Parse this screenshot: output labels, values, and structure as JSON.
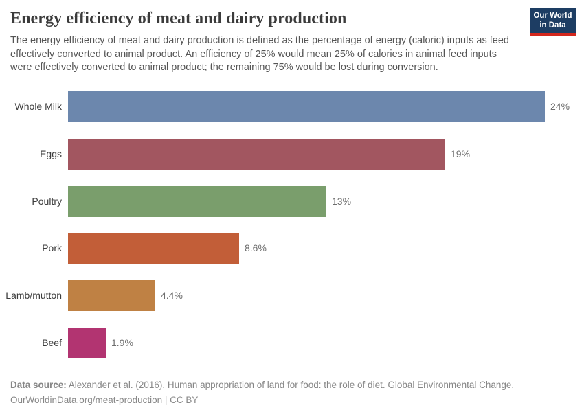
{
  "header": {
    "title": "Energy efficiency of meat and dairy production",
    "subtitle": "The energy efficiency of meat and dairy production is defined as the percentage of energy (caloric) inputs as feed effectively converted to animal product. An efficiency of 25% would mean 25% of calories in animal feed inputs were effectively converted to animal product; the remaining 75% would be lost during conversion.",
    "logo": {
      "line1": "Our World",
      "line2": "in Data",
      "background_color": "#1d3d63",
      "accent_color": "#d3271d"
    }
  },
  "chart_data": {
    "type": "bar",
    "orientation": "horizontal",
    "categories": [
      "Whole Milk",
      "Eggs",
      "Poultry",
      "Pork",
      "Lamb/mutton",
      "Beef"
    ],
    "values": [
      24,
      19,
      13,
      8.6,
      4.4,
      1.9
    ],
    "value_labels": [
      "24%",
      "19%",
      "13%",
      "8.6%",
      "4.4%",
      "1.9%"
    ],
    "bar_colors": [
      "#6c87ad",
      "#a25660",
      "#7a9e6c",
      "#c25e38",
      "#bf8144",
      "#b23471"
    ],
    "title": "Energy efficiency of meat and dairy production",
    "xlabel": "",
    "ylabel": "",
    "xlim": [
      0,
      24
    ],
    "grid": false,
    "legend": "none",
    "axis_color": "#cfcfcf"
  },
  "footer": {
    "datasource_label": "Data source:",
    "citation": "Alexander et al. (2016). Human appropriation of land for food: the role of diet. Global Environmental Change.",
    "link": "OurWorldinData.org/meat-production",
    "separator": " | ",
    "license": "CC BY"
  }
}
